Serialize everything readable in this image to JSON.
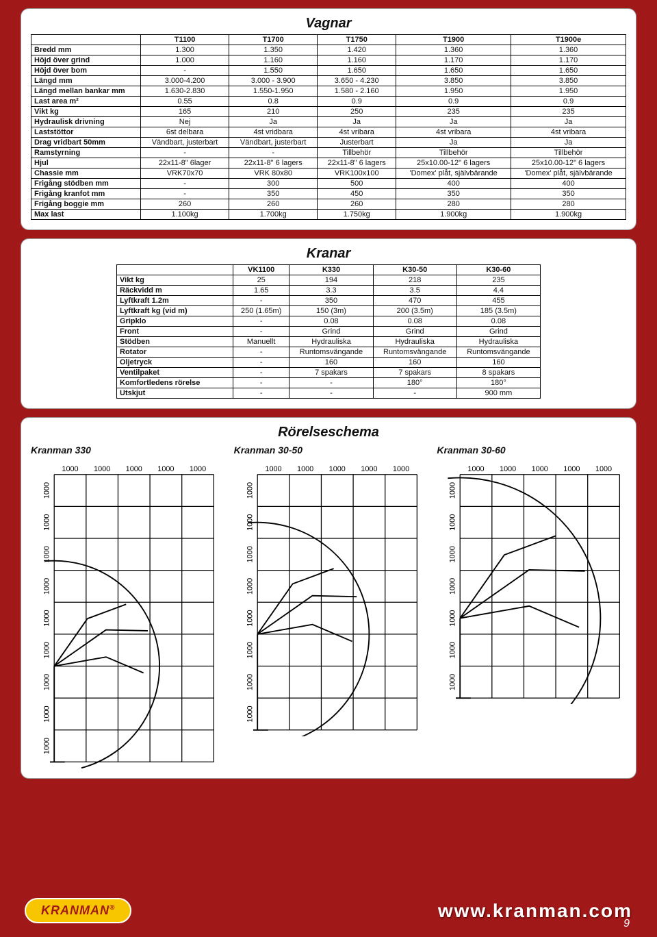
{
  "page_number": "9",
  "footer": {
    "logo_text": "KRANMAN",
    "logo_sup": "®",
    "url": "www.kranman.com"
  },
  "vagnar": {
    "title": "Vagnar",
    "cols": [
      "",
      "T1100",
      "T1700",
      "T1750",
      "T1900",
      "T1900e"
    ],
    "rows": [
      [
        "Bredd mm",
        "1.300",
        "1.350",
        "1.420",
        "1.360",
        "1.360"
      ],
      [
        "Höjd över grind",
        "1.000",
        "1.160",
        "1.160",
        "1.170",
        "1.170"
      ],
      [
        "Höjd över bom",
        "-",
        "1.550",
        "1.650",
        "1.650",
        "1.650"
      ],
      [
        "Längd mm",
        "3.000-4.200",
        "3.000 - 3.900",
        "3.650 - 4.230",
        "3.850",
        "3.850"
      ],
      [
        "Längd mellan bankar mm",
        "1.630-2.830",
        "1.550-1.950",
        "1.580 - 2.160",
        "1.950",
        "1.950"
      ],
      [
        "Last area m²",
        "0.55",
        "0.8",
        "0.9",
        "0.9",
        "0.9"
      ],
      [
        "Vikt kg",
        "165",
        "210",
        "250",
        "235",
        "235"
      ],
      [
        "Hydraulisk drivning",
        "Nej",
        "Ja",
        "Ja",
        "Ja",
        "Ja"
      ],
      [
        "Laststöttor",
        "6st delbara",
        "4st vridbara",
        "4st vribara",
        "4st vribara",
        "4st vribara"
      ],
      [
        "Drag vridbart 50mm",
        "Vändbart, justerbart",
        "Vändbart, justerbart",
        "Justerbart",
        "Ja",
        "Ja"
      ],
      [
        "Ramstyrning",
        "-",
        "-",
        "Tillbehör",
        "Tillbehör",
        "Tillbehör"
      ],
      [
        "Hjul",
        "22x11-8\" 6lager",
        "22x11-8\" 6 lagers",
        "22x11-8\" 6 lagers",
        "25x10.00-12\" 6 lagers",
        "25x10.00-12\" 6 lagers"
      ],
      [
        "Chassie mm",
        "VRK70x70",
        "VRK 80x80",
        "VRK100x100",
        "'Domex' plåt, självbärande",
        "'Domex' plåt, självbärande"
      ],
      [
        "Frigång stödben mm",
        "-",
        "300",
        "500",
        "400",
        "400"
      ],
      [
        "Frigång kranfot mm",
        "-",
        "350",
        "450",
        "350",
        "350"
      ],
      [
        "Frigång boggie mm",
        "260",
        "260",
        "260",
        "280",
        "280"
      ],
      [
        "Max last",
        "1.100kg",
        "1.700kg",
        "1.750kg",
        "1.900kg",
        "1.900kg"
      ]
    ]
  },
  "kranar": {
    "title": "Kranar",
    "cols": [
      "",
      "VK1100",
      "K330",
      "K30-50",
      "K30-60"
    ],
    "rows": [
      [
        "Vikt kg",
        "25",
        "194",
        "218",
        "235"
      ],
      [
        "Räckvidd m",
        "1.65",
        "3.3",
        "3.5",
        "4.4"
      ],
      [
        "Lyftkraft 1.2m",
        "-",
        "350",
        "470",
        "455"
      ],
      [
        "Lyftkraft kg (vid m)",
        "250 (1.65m)",
        "150 (3m)",
        "200 (3.5m)",
        "185 (3.5m)"
      ],
      [
        "Gripklo",
        "-",
        "0.08",
        "0.08",
        "0.08"
      ],
      [
        "Front",
        "-",
        "Grind",
        "Grind",
        "Grind"
      ],
      [
        "Stödben",
        "Manuellt",
        "Hydrauliska",
        "Hydrauliska",
        "Hydrauliska"
      ],
      [
        "Rotator",
        "-",
        "Runtomsvängande",
        "Runtomsvängande",
        "Runtomsvängande"
      ],
      [
        "Oljetryck",
        "-",
        "160",
        "160",
        "160"
      ],
      [
        "Ventilpaket",
        "-",
        "7 spakars",
        "7 spakars",
        "8 spakars"
      ],
      [
        "Komfortledens rörelse",
        "-",
        "-",
        "180°",
        "180°"
      ],
      [
        "Utskjut",
        "-",
        "-",
        "-",
        "900 mm"
      ]
    ]
  },
  "rorelse": {
    "title": "Rörelseschema",
    "diagrams": [
      {
        "title": "Kranman 330",
        "grid_step": 1000,
        "x_ticks": [
          "1000",
          "1000",
          "1000",
          "1000",
          "1000"
        ],
        "y_ticks": [
          "1000",
          "1000",
          "1000",
          "1000",
          "1000",
          "1000",
          "1000",
          "1000",
          "1000"
        ],
        "cols": 5,
        "rows_g": 9,
        "reach_x": 3.3,
        "height_y": 5.0,
        "pivot_y_from_bottom": 3.0
      },
      {
        "title": "Kranman 30-50",
        "grid_step": 1000,
        "x_ticks": [
          "1000",
          "1000",
          "1000",
          "1000",
          "1000"
        ],
        "y_ticks": [
          "1000",
          "1000",
          "1000",
          "1000",
          "1000",
          "1000",
          "1000",
          "1000"
        ],
        "cols": 5,
        "rows_g": 8,
        "reach_x": 3.5,
        "height_y": 4.8,
        "pivot_y_from_bottom": 3.0
      },
      {
        "title": "Kranman 30-60",
        "grid_step": 1000,
        "x_ticks": [
          "1000",
          "1000",
          "1000",
          "1000",
          "1000"
        ],
        "y_ticks": [
          "1000",
          "1000",
          "1000",
          "1000",
          "1000",
          "1000",
          "1000"
        ],
        "cols": 5,
        "rows_g": 7,
        "reach_x": 4.4,
        "height_y": 4.5,
        "pivot_y_from_bottom": 2.5
      }
    ]
  },
  "colors": {
    "page_bg": "#a01818",
    "panel_bg": "#ffffff",
    "border": "#000000",
    "logo_bg": "#f7c600",
    "logo_fg": "#a01818"
  }
}
